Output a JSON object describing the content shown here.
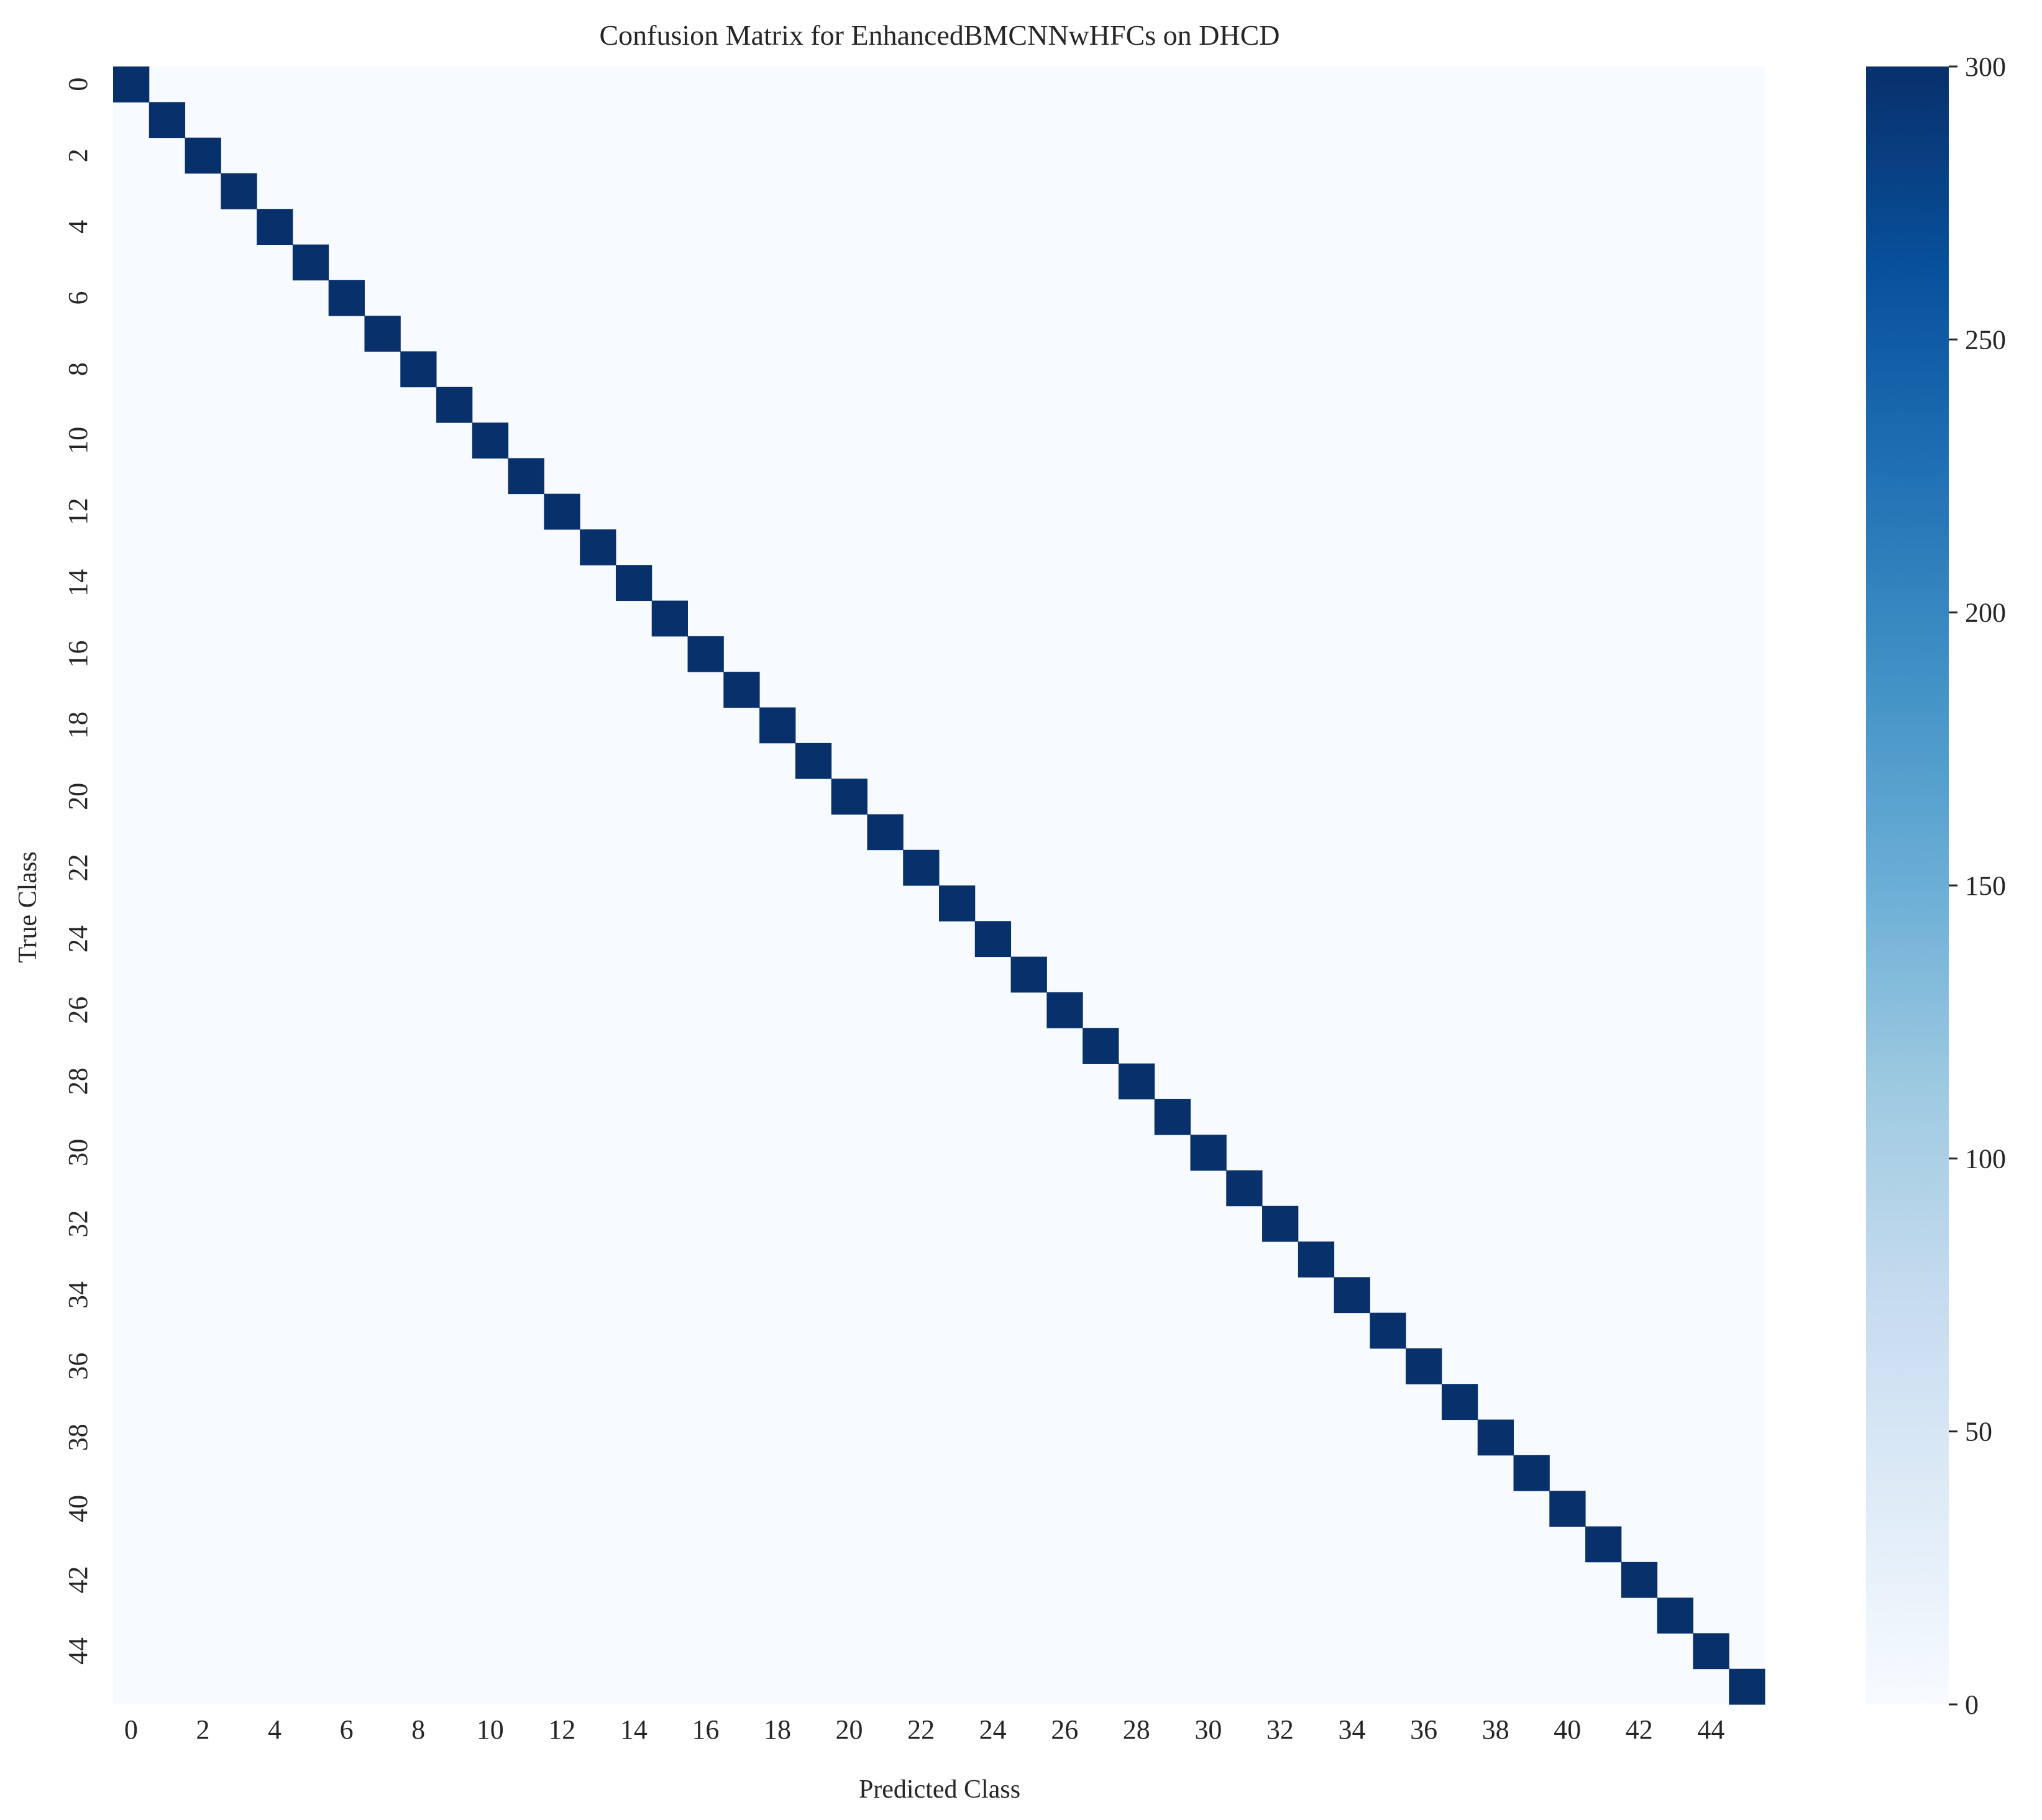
{
  "chart_data": {
    "type": "heatmap",
    "title": "Confusion Matrix for EnhancedBMCNNwHFCs on DHCD",
    "xlabel": "Predicted Class",
    "ylabel": "True Class",
    "n_classes": 46,
    "x_tick_labels": [
      "0",
      "2",
      "4",
      "6",
      "8",
      "10",
      "12",
      "14",
      "16",
      "18",
      "20",
      "22",
      "24",
      "26",
      "28",
      "30",
      "32",
      "34",
      "36",
      "38",
      "40",
      "42",
      "44"
    ],
    "y_tick_labels": [
      "0",
      "2",
      "4",
      "6",
      "8",
      "10",
      "12",
      "14",
      "16",
      "18",
      "20",
      "22",
      "24",
      "26",
      "28",
      "30",
      "32",
      "34",
      "36",
      "38",
      "40",
      "42",
      "44"
    ],
    "diagonal_value": 300,
    "off_diagonal_value": 0,
    "colorscale": "Blues",
    "color_min": "#f7fbff",
    "color_max": "#08306b",
    "colorbar": {
      "range": [
        0,
        300
      ],
      "ticks": [
        "0",
        "50",
        "100",
        "150",
        "200",
        "250",
        "300"
      ]
    },
    "grid": false,
    "legend": "colorbar-right"
  }
}
